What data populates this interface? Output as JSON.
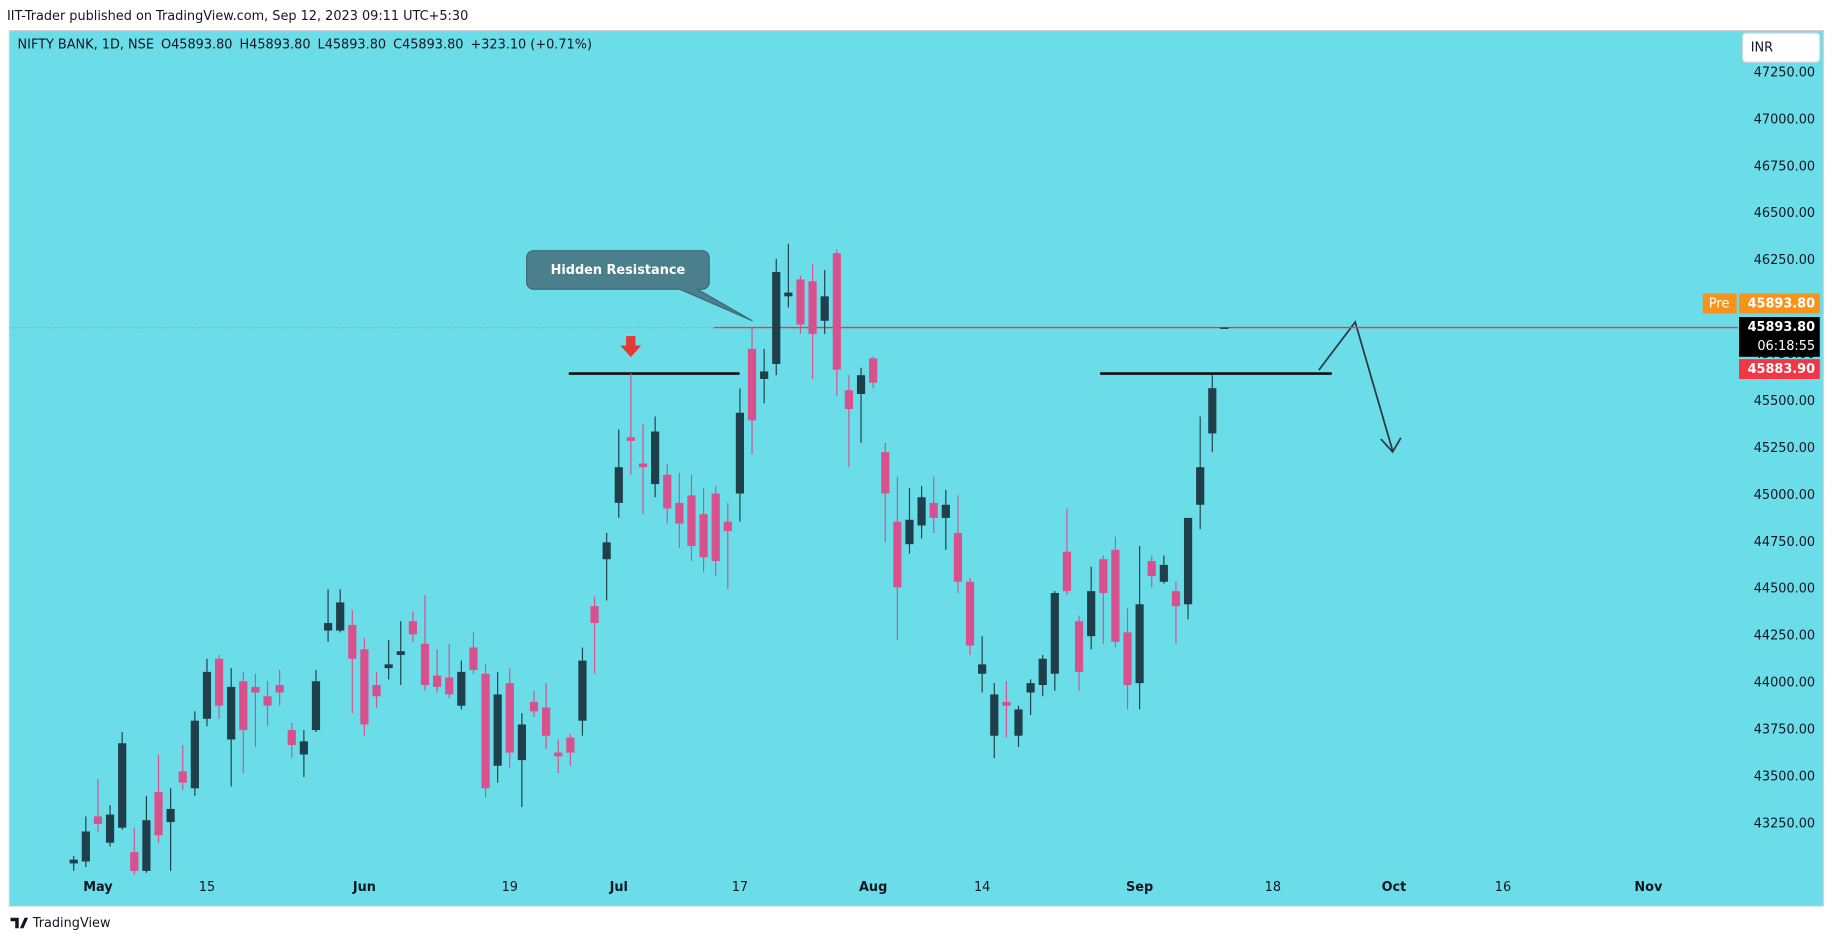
{
  "header": {
    "publisher": "IIT-Trader published on TradingView.com, Sep 12, 2023 09:11 UTC+5:30",
    "brand": "TradingView"
  },
  "chart_data": {
    "type": "candlestick",
    "title": "NIFTY BANK, 1D, NSE",
    "ohlc_legend": [
      "O45893.80",
      "H45893.80",
      "L45893.80",
      "C45893.80",
      "+323.10 (+0.71%)"
    ],
    "currency": "INR",
    "up_color": "#1f3f4a",
    "down_color": "#d8508c",
    "categories": [
      null,
      null,
      "May",
      null,
      null,
      null,
      null,
      null,
      null,
      null,
      null,
      "15",
      null,
      null,
      null,
      null,
      null,
      null,
      null,
      null,
      null,
      null,
      null,
      null,
      "Jun",
      null,
      null,
      null,
      null,
      null,
      null,
      null,
      null,
      null,
      null,
      null,
      "19",
      null,
      null,
      null,
      null,
      null,
      null,
      null,
      null,
      "Jul",
      null,
      null,
      null,
      null,
      null,
      null,
      null,
      null,
      null,
      "17",
      null,
      null,
      null,
      null,
      null,
      null,
      null,
      null,
      null,
      null,
      "Aug",
      null,
      null,
      null,
      null,
      null,
      null,
      null,
      null,
      "14",
      null,
      null,
      null,
      null,
      null,
      null,
      null,
      null,
      null,
      null,
      null,
      null,
      "Sep",
      null,
      null,
      null,
      null,
      null,
      null,
      null,
      null,
      null,
      null,
      "18",
      null,
      null,
      null,
      null,
      null,
      null,
      null,
      null,
      null,
      "Oct",
      null,
      null,
      null,
      null,
      null,
      null,
      null,
      null,
      "16",
      null,
      null,
      null,
      null,
      null,
      null,
      null,
      null,
      null,
      null,
      null,
      "Nov"
    ],
    "open": [
      43040,
      43050,
      43290,
      43150,
      43230,
      43100,
      43000,
      43420,
      43260,
      43530,
      43440,
      43810,
      44130,
      43700,
      44010,
      43980,
      43930,
      43990,
      43750,
      43620,
      43750,
      44280,
      44280,
      44310,
      44180,
      43990,
      44080,
      44150,
      44330,
      44210,
      44040,
      44030,
      43880,
      44190,
      44050,
      43560,
      44000,
      43590,
      43900,
      43870,
      43630,
      43710,
      43800,
      44410,
      44660,
      44960,
      45310,
      45170,
      45060,
      45110,
      44960,
      45000,
      44900,
      45010,
      44860,
      45010,
      45780,
      45620,
      45700,
      46060,
      46150,
      46140,
      45930,
      46290,
      45560,
      45540,
      45730,
      45230,
      44860,
      44740,
      44840,
      44960,
      44880,
      44800,
      44540,
      44050,
      43720,
      43900,
      43720,
      43950,
      43990,
      44050,
      44700,
      44330,
      44250,
      44660,
      44710,
      44270,
      44000,
      44650,
      44540,
      44490,
      44420,
      44950,
      45330,
      45893.8,
      null,
      null,
      null,
      null,
      null,
      null,
      null,
      null,
      null,
      null,
      null,
      null,
      null,
      null,
      null,
      null,
      null,
      null,
      null,
      null,
      null,
      null,
      null,
      null,
      null,
      null,
      null,
      null,
      null,
      null,
      null,
      null,
      null,
      null,
      null
    ],
    "high": [
      43080,
      43290,
      43490,
      43350,
      43740,
      43230,
      43400,
      43620,
      43440,
      43670,
      43850,
      44130,
      44150,
      44080,
      44060,
      44050,
      44010,
      44070,
      43790,
      43750,
      44070,
      44500,
      44500,
      44390,
      44240,
      44060,
      44230,
      44330,
      44380,
      44470,
      44180,
      44210,
      44120,
      44270,
      44100,
      44060,
      44080,
      43840,
      43960,
      44000,
      43700,
      43730,
      44190,
      44460,
      44800,
      45350,
      45650,
      45380,
      45420,
      45170,
      45120,
      45110,
      45040,
      45050,
      44960,
      45570,
      45890,
      45780,
      46260,
      46340,
      46170,
      46230,
      46200,
      46310,
      45640,
      45680,
      45740,
      45280,
      45100,
      45040,
      45050,
      45100,
      45030,
      45000,
      44560,
      44250,
      44000,
      44010,
      43880,
      44020,
      44150,
      44490,
      44930,
      44360,
      44620,
      44680,
      44780,
      44400,
      44730,
      44680,
      44680,
      44540,
      44880,
      45420,
      45640,
      45893.8,
      null,
      null,
      null,
      null,
      null,
      null,
      null,
      null,
      null,
      null,
      null,
      null,
      null,
      null,
      null,
      null,
      null,
      null,
      null,
      null,
      null,
      null,
      null,
      null,
      null,
      null,
      null,
      null,
      null,
      null,
      null,
      null,
      null,
      null,
      null
    ],
    "low": [
      43000,
      43020,
      43210,
      43130,
      43220,
      42980,
      42990,
      43150,
      43000,
      43430,
      43400,
      43770,
      43810,
      43450,
      43520,
      43660,
      43770,
      43880,
      43600,
      43500,
      43740,
      44220,
      44270,
      43840,
      43720,
      43870,
      44020,
      43990,
      44220,
      43960,
      43950,
      43920,
      43860,
      44050,
      43390,
      43470,
      43550,
      43340,
      43820,
      43650,
      43520,
      43560,
      43720,
      44050,
      44440,
      44880,
      45110,
      44900,
      44990,
      44850,
      44720,
      44650,
      44590,
      44570,
      44500,
      44860,
      45220,
      45490,
      45640,
      46000,
      45860,
      45620,
      45860,
      45530,
      45150,
      45280,
      45570,
      44750,
      44230,
      44690,
      44770,
      44800,
      44710,
      44480,
      44150,
      43950,
      43600,
      43710,
      43660,
      43830,
      43930,
      43960,
      44470,
      43960,
      44180,
      44210,
      44190,
      43860,
      43860,
      44510,
      44530,
      44210,
      44340,
      44820,
      45230,
      45893.8,
      null,
      null,
      null,
      null,
      null,
      null,
      null,
      null,
      null,
      null,
      null,
      null,
      null,
      null,
      null,
      null,
      null,
      null,
      null,
      null,
      null,
      null,
      null,
      null,
      null,
      null,
      null,
      null,
      null,
      null,
      null,
      null,
      null,
      null,
      null
    ],
    "close": [
      43060,
      43210,
      43250,
      43300,
      43680,
      43000,
      43270,
      43190,
      43330,
      43470,
      43800,
      44060,
      43880,
      43980,
      43750,
      43950,
      43880,
      43950,
      43670,
      43690,
      44010,
      44320,
      44430,
      44130,
      43780,
      43930,
      44100,
      44170,
      44260,
      43990,
      43980,
      43940,
      44060,
      44070,
      43440,
      43940,
      43630,
      43780,
      43850,
      43720,
      43610,
      43630,
      44120,
      44320,
      44750,
      45150,
      45290,
      45150,
      45340,
      44930,
      44850,
      44730,
      44670,
      44650,
      44810,
      45440,
      45400,
      45660,
      46190,
      46080,
      45910,
      45860,
      46060,
      45670,
      45460,
      45640,
      45600,
      45010,
      44510,
      44870,
      44990,
      44880,
      44950,
      44540,
      44200,
      44100,
      43940,
      43880,
      43860,
      44000,
      44130,
      44480,
      44490,
      44060,
      44490,
      44480,
      44220,
      43990,
      44420,
      44570,
      44630,
      44410,
      44880,
      45150,
      45570.7,
      45893.8,
      null,
      null,
      null,
      null,
      null,
      null,
      null,
      null,
      null,
      null,
      null,
      null,
      null,
      null,
      null,
      null,
      null,
      null,
      null,
      null,
      null,
      null,
      null,
      null,
      null,
      null,
      null,
      null,
      null,
      null,
      null,
      null,
      null,
      null,
      null
    ],
    "ylim": [
      43000,
      47475
    ],
    "yticks": [
      {
        "value": 43250,
        "label": "43250.00"
      },
      {
        "value": 43500,
        "label": "43500.00"
      },
      {
        "value": 43750,
        "label": "43750.00"
      },
      {
        "value": 44000,
        "label": "44000.00"
      },
      {
        "value": 44250,
        "label": "44250.00"
      },
      {
        "value": 44500,
        "label": "44500.00"
      },
      {
        "value": 44750,
        "label": "44750.00"
      },
      {
        "value": 45000,
        "label": "45000.00"
      },
      {
        "value": 45250,
        "label": "45250.00"
      },
      {
        "value": 45500,
        "label": "45500.00"
      },
      {
        "value": 45750,
        "label": "45750.00"
      },
      {
        "value": 46000,
        "label": "46000.00"
      },
      {
        "value": 46250,
        "label": "46250.00"
      },
      {
        "value": 46500,
        "label": "46500.00"
      },
      {
        "value": 46750,
        "label": "46750.00"
      },
      {
        "value": 47000,
        "label": "47000.00"
      },
      {
        "value": 47250,
        "label": "47250.00"
      }
    ],
    "price_line": {
      "value": 45893.8,
      "color": "#f23645"
    },
    "price_labels": [
      {
        "tag": "Pre",
        "value": 45893.8,
        "label": "45893.80",
        "color": "#f7931a"
      },
      {
        "value": 45893.8,
        "label": "45893.80",
        "countdown": "06:18:55",
        "color": "#000000"
      },
      {
        "value": 45883.9,
        "label": "45883.90",
        "color": "#f23645"
      }
    ],
    "annotations": [
      "Hidden Resistance"
    ]
  }
}
